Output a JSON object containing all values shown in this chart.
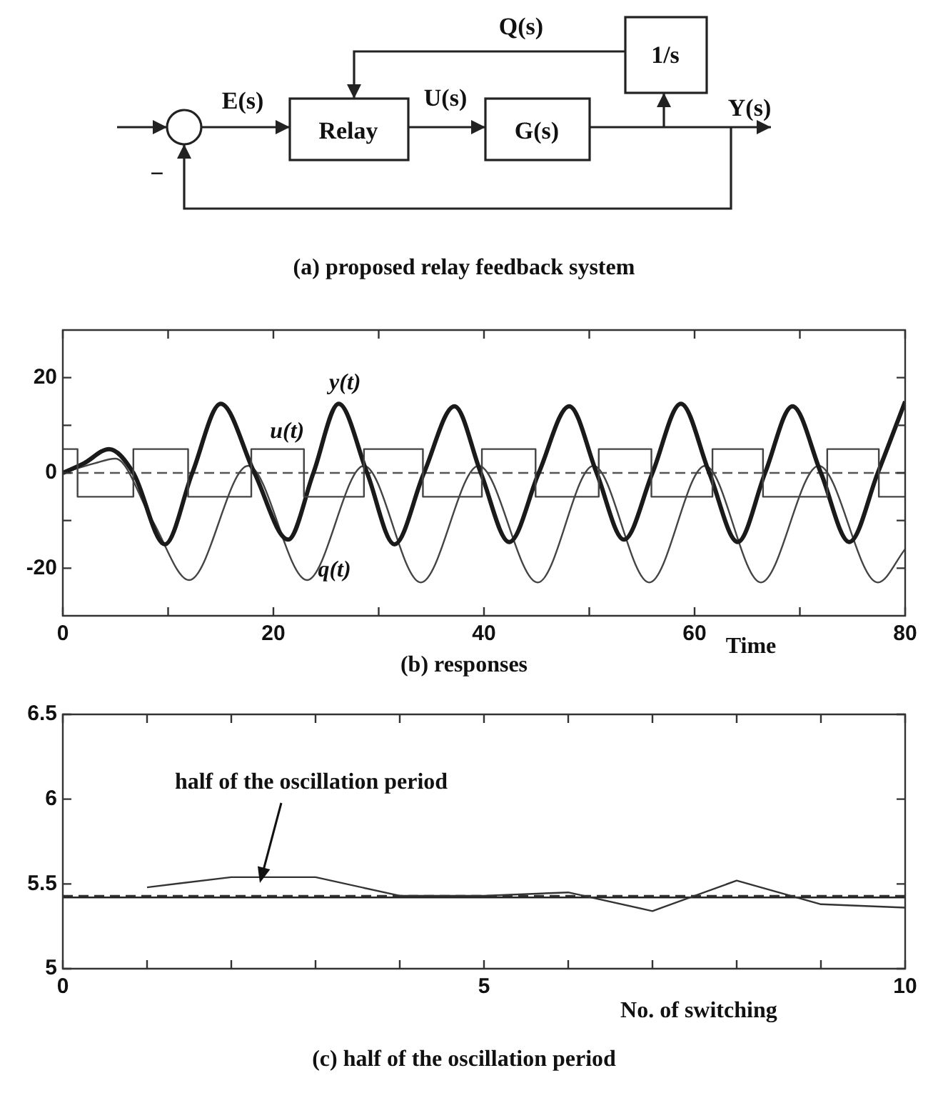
{
  "chart_data": [
    {
      "type": "other",
      "title": "(a) proposed relay feedback system",
      "annotations": [
        "E(s)",
        "Relay",
        "U(s)",
        "G(s)",
        "Y(s)",
        "Q(s)",
        "1/s",
        "−"
      ]
    },
    {
      "type": "line",
      "title": "(b) responses",
      "xlabel": "Time",
      "xlim": [
        0,
        80
      ],
      "xticks": [
        0,
        {
          "value": 10,
          "label": null
        },
        20,
        {
          "value": 30,
          "label": null
        },
        40,
        {
          "value": 50,
          "label": null
        },
        60,
        {
          "value": 70,
          "label": null
        },
        80
      ],
      "ylim": [
        -30,
        30
      ],
      "yticks": [
        -20,
        {
          "value": -10,
          "label": null
        },
        0,
        {
          "value": 10,
          "label": null
        },
        20
      ],
      "ref_lines": [
        {
          "axis": "y",
          "value": 0,
          "line_style": "dashed",
          "color": "#555555"
        }
      ],
      "series": [
        {
          "name": "u(t)",
          "type": "step",
          "color": "#444444",
          "x": [
            0,
            1.4,
            6.7,
            11.9,
            17.9,
            22.9,
            28.6,
            34.2,
            39.8,
            44.9,
            50.9,
            55.9,
            61.7,
            66.5,
            72.6,
            77.5,
            80
          ],
          "values": [
            5,
            -5,
            5,
            -5,
            5,
            -5,
            5,
            -5,
            5,
            -5,
            5,
            -5,
            5,
            -5,
            5,
            -5,
            -5
          ]
        },
        {
          "name": "y(t)",
          "type": "line",
          "color": "#1a1a1a",
          "x": [
            0,
            2,
            4.4,
            6.7,
            9.7,
            12.3,
            15.0,
            18.2,
            21.4,
            23.8,
            26.2,
            28.9,
            31.5,
            34.3,
            37.2,
            39.7,
            42.4,
            45.2,
            48.1,
            50.7,
            53.3,
            56.0,
            58.7,
            61.4,
            64.1,
            66.7,
            69.3,
            72.0,
            74.7,
            77.4,
            80
          ],
          "values": [
            0,
            2,
            5,
            0,
            -15,
            0,
            14.5,
            0,
            -14,
            0,
            14.5,
            0,
            -15,
            0,
            14,
            0,
            -14.5,
            0,
            14,
            0,
            -14,
            0,
            14.5,
            0,
            -14.5,
            0,
            14,
            0,
            -14.5,
            0,
            15
          ]
        },
        {
          "name": "q(t)",
          "type": "line",
          "color": "#444444",
          "x": [
            0,
            3,
            5,
            8.5,
            12.0,
            17.6,
            23.2,
            28.6,
            34.0,
            39.5,
            45.1,
            50.4,
            55.7,
            61.0,
            66.3,
            71.8,
            77.4,
            80
          ],
          "values": [
            0,
            2,
            3,
            -10,
            -22.5,
            1.5,
            -22.5,
            1.5,
            -23,
            1.5,
            -23,
            1.5,
            -23,
            1.5,
            -23,
            1.5,
            -23,
            -16
          ]
        }
      ]
    },
    {
      "type": "line",
      "title": "(c) half of the oscillation period",
      "xlabel": "No. of switching",
      "xlim": [
        0,
        10
      ],
      "xticks": [
        0,
        {
          "value": 1,
          "label": null
        },
        {
          "value": 2,
          "label": null
        },
        {
          "value": 3,
          "label": null
        },
        {
          "value": 4,
          "label": null
        },
        5,
        {
          "value": 6,
          "label": null
        },
        {
          "value": 7,
          "label": null
        },
        {
          "value": 8,
          "label": null
        },
        {
          "value": 9,
          "label": null
        },
        10
      ],
      "ylim": [
        5,
        6.5
      ],
      "yticks": [
        5,
        5.5,
        6,
        6.5
      ],
      "ref_lines": [
        {
          "axis": "y",
          "value": 5.43,
          "line_style": "dashed",
          "color": "#333333"
        },
        {
          "axis": "y",
          "value": 5.42,
          "line_style": "solid",
          "color": "#222222"
        }
      ],
      "annotations": [
        "half of the oscillation period"
      ],
      "series": [
        {
          "color": "#333333",
          "x": [
            1,
            2,
            3,
            4,
            5,
            6,
            7,
            8,
            9,
            10
          ],
          "values": [
            5.48,
            5.54,
            5.54,
            5.43,
            5.43,
            5.45,
            5.34,
            5.52,
            5.38,
            5.36
          ]
        }
      ]
    }
  ]
}
